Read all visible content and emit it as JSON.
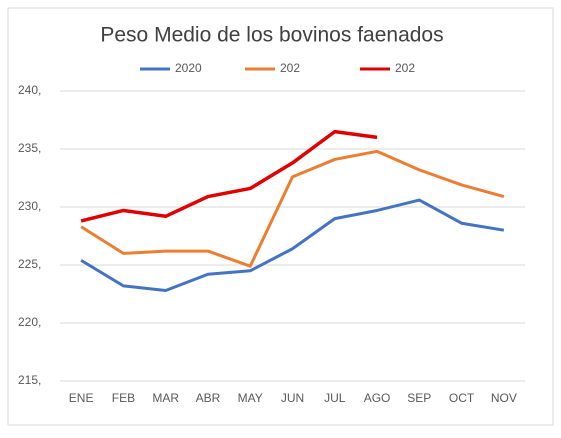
{
  "chart_data": {
    "type": "line",
    "title": "Peso Medio de los bovinos faenados",
    "categories": [
      "ENE",
      "FEB",
      "MAR",
      "ABR",
      "MAY",
      "JUN",
      "JUL",
      "AGO",
      "SEP",
      "OCT",
      "NOV"
    ],
    "series": [
      {
        "name": "2020",
        "color": "#4472c4",
        "values": [
          225.4,
          223.2,
          222.8,
          224.2,
          224.5,
          226.4,
          229.0,
          229.7,
          230.6,
          228.6,
          228.0
        ]
      },
      {
        "name": "202",
        "color": "#ed7d31",
        "values": [
          228.3,
          226.0,
          226.2,
          226.2,
          224.9,
          232.6,
          234.1,
          234.8,
          233.2,
          231.9,
          230.9
        ]
      },
      {
        "name": "202",
        "color": "#e00000",
        "values": [
          228.8,
          229.7,
          229.2,
          230.9,
          231.6,
          233.8,
          236.5,
          236.0,
          null,
          null,
          null
        ]
      }
    ],
    "ylim": [
      215,
      240
    ],
    "yticks": [
      {
        "value": 215,
        "label": "215,"
      },
      {
        "value": 220,
        "label": "220,"
      },
      {
        "value": 225,
        "label": "225,"
      },
      {
        "value": 230,
        "label": "230,"
      },
      {
        "value": 235,
        "label": "235,"
      },
      {
        "value": 240,
        "label": "240,"
      }
    ],
    "grid": true,
    "legend": "top"
  }
}
